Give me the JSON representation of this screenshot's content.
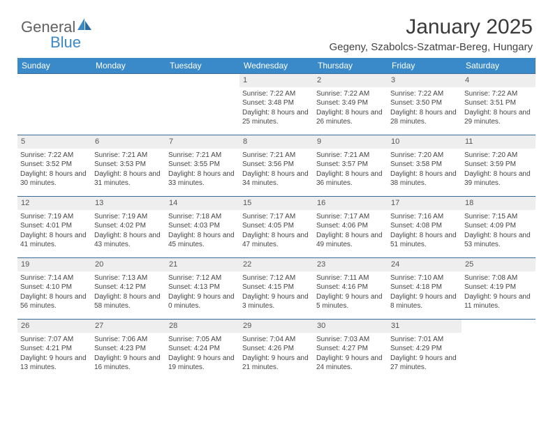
{
  "logo": {
    "text1": "General",
    "text2": "Blue"
  },
  "title": "January 2025",
  "location": "Gegeny, Szabolcs-Szatmar-Bereg, Hungary",
  "colors": {
    "header_bg": "#3a8ac9",
    "header_fg": "#ffffff",
    "daynum_bg": "#eeeeee",
    "border": "#3a6a9a",
    "text": "#444444",
    "logo_gray": "#616161",
    "logo_blue": "#3a8ac9"
  },
  "dayNames": [
    "Sunday",
    "Monday",
    "Tuesday",
    "Wednesday",
    "Thursday",
    "Friday",
    "Saturday"
  ],
  "weeks": [
    [
      {
        "n": "",
        "empty": true
      },
      {
        "n": "",
        "empty": true
      },
      {
        "n": "",
        "empty": true
      },
      {
        "n": "1",
        "sr": "7:22 AM",
        "ss": "3:48 PM",
        "dl": "8 hours and 25 minutes."
      },
      {
        "n": "2",
        "sr": "7:22 AM",
        "ss": "3:49 PM",
        "dl": "8 hours and 26 minutes."
      },
      {
        "n": "3",
        "sr": "7:22 AM",
        "ss": "3:50 PM",
        "dl": "8 hours and 28 minutes."
      },
      {
        "n": "4",
        "sr": "7:22 AM",
        "ss": "3:51 PM",
        "dl": "8 hours and 29 minutes."
      }
    ],
    [
      {
        "n": "5",
        "sr": "7:22 AM",
        "ss": "3:52 PM",
        "dl": "8 hours and 30 minutes."
      },
      {
        "n": "6",
        "sr": "7:21 AM",
        "ss": "3:53 PM",
        "dl": "8 hours and 31 minutes."
      },
      {
        "n": "7",
        "sr": "7:21 AM",
        "ss": "3:55 PM",
        "dl": "8 hours and 33 minutes."
      },
      {
        "n": "8",
        "sr": "7:21 AM",
        "ss": "3:56 PM",
        "dl": "8 hours and 34 minutes."
      },
      {
        "n": "9",
        "sr": "7:21 AM",
        "ss": "3:57 PM",
        "dl": "8 hours and 36 minutes."
      },
      {
        "n": "10",
        "sr": "7:20 AM",
        "ss": "3:58 PM",
        "dl": "8 hours and 38 minutes."
      },
      {
        "n": "11",
        "sr": "7:20 AM",
        "ss": "3:59 PM",
        "dl": "8 hours and 39 minutes."
      }
    ],
    [
      {
        "n": "12",
        "sr": "7:19 AM",
        "ss": "4:01 PM",
        "dl": "8 hours and 41 minutes."
      },
      {
        "n": "13",
        "sr": "7:19 AM",
        "ss": "4:02 PM",
        "dl": "8 hours and 43 minutes."
      },
      {
        "n": "14",
        "sr": "7:18 AM",
        "ss": "4:03 PM",
        "dl": "8 hours and 45 minutes."
      },
      {
        "n": "15",
        "sr": "7:17 AM",
        "ss": "4:05 PM",
        "dl": "8 hours and 47 minutes."
      },
      {
        "n": "16",
        "sr": "7:17 AM",
        "ss": "4:06 PM",
        "dl": "8 hours and 49 minutes."
      },
      {
        "n": "17",
        "sr": "7:16 AM",
        "ss": "4:08 PM",
        "dl": "8 hours and 51 minutes."
      },
      {
        "n": "18",
        "sr": "7:15 AM",
        "ss": "4:09 PM",
        "dl": "8 hours and 53 minutes."
      }
    ],
    [
      {
        "n": "19",
        "sr": "7:14 AM",
        "ss": "4:10 PM",
        "dl": "8 hours and 56 minutes."
      },
      {
        "n": "20",
        "sr": "7:13 AM",
        "ss": "4:12 PM",
        "dl": "8 hours and 58 minutes."
      },
      {
        "n": "21",
        "sr": "7:12 AM",
        "ss": "4:13 PM",
        "dl": "9 hours and 0 minutes."
      },
      {
        "n": "22",
        "sr": "7:12 AM",
        "ss": "4:15 PM",
        "dl": "9 hours and 3 minutes."
      },
      {
        "n": "23",
        "sr": "7:11 AM",
        "ss": "4:16 PM",
        "dl": "9 hours and 5 minutes."
      },
      {
        "n": "24",
        "sr": "7:10 AM",
        "ss": "4:18 PM",
        "dl": "9 hours and 8 minutes."
      },
      {
        "n": "25",
        "sr": "7:08 AM",
        "ss": "4:19 PM",
        "dl": "9 hours and 11 minutes."
      }
    ],
    [
      {
        "n": "26",
        "sr": "7:07 AM",
        "ss": "4:21 PM",
        "dl": "9 hours and 13 minutes."
      },
      {
        "n": "27",
        "sr": "7:06 AM",
        "ss": "4:23 PM",
        "dl": "9 hours and 16 minutes."
      },
      {
        "n": "28",
        "sr": "7:05 AM",
        "ss": "4:24 PM",
        "dl": "9 hours and 19 minutes."
      },
      {
        "n": "29",
        "sr": "7:04 AM",
        "ss": "4:26 PM",
        "dl": "9 hours and 21 minutes."
      },
      {
        "n": "30",
        "sr": "7:03 AM",
        "ss": "4:27 PM",
        "dl": "9 hours and 24 minutes."
      },
      {
        "n": "31",
        "sr": "7:01 AM",
        "ss": "4:29 PM",
        "dl": "9 hours and 27 minutes."
      },
      {
        "n": "",
        "empty": true
      }
    ]
  ],
  "labels": {
    "sunrise": "Sunrise:",
    "sunset": "Sunset:",
    "daylight": "Daylight:"
  }
}
